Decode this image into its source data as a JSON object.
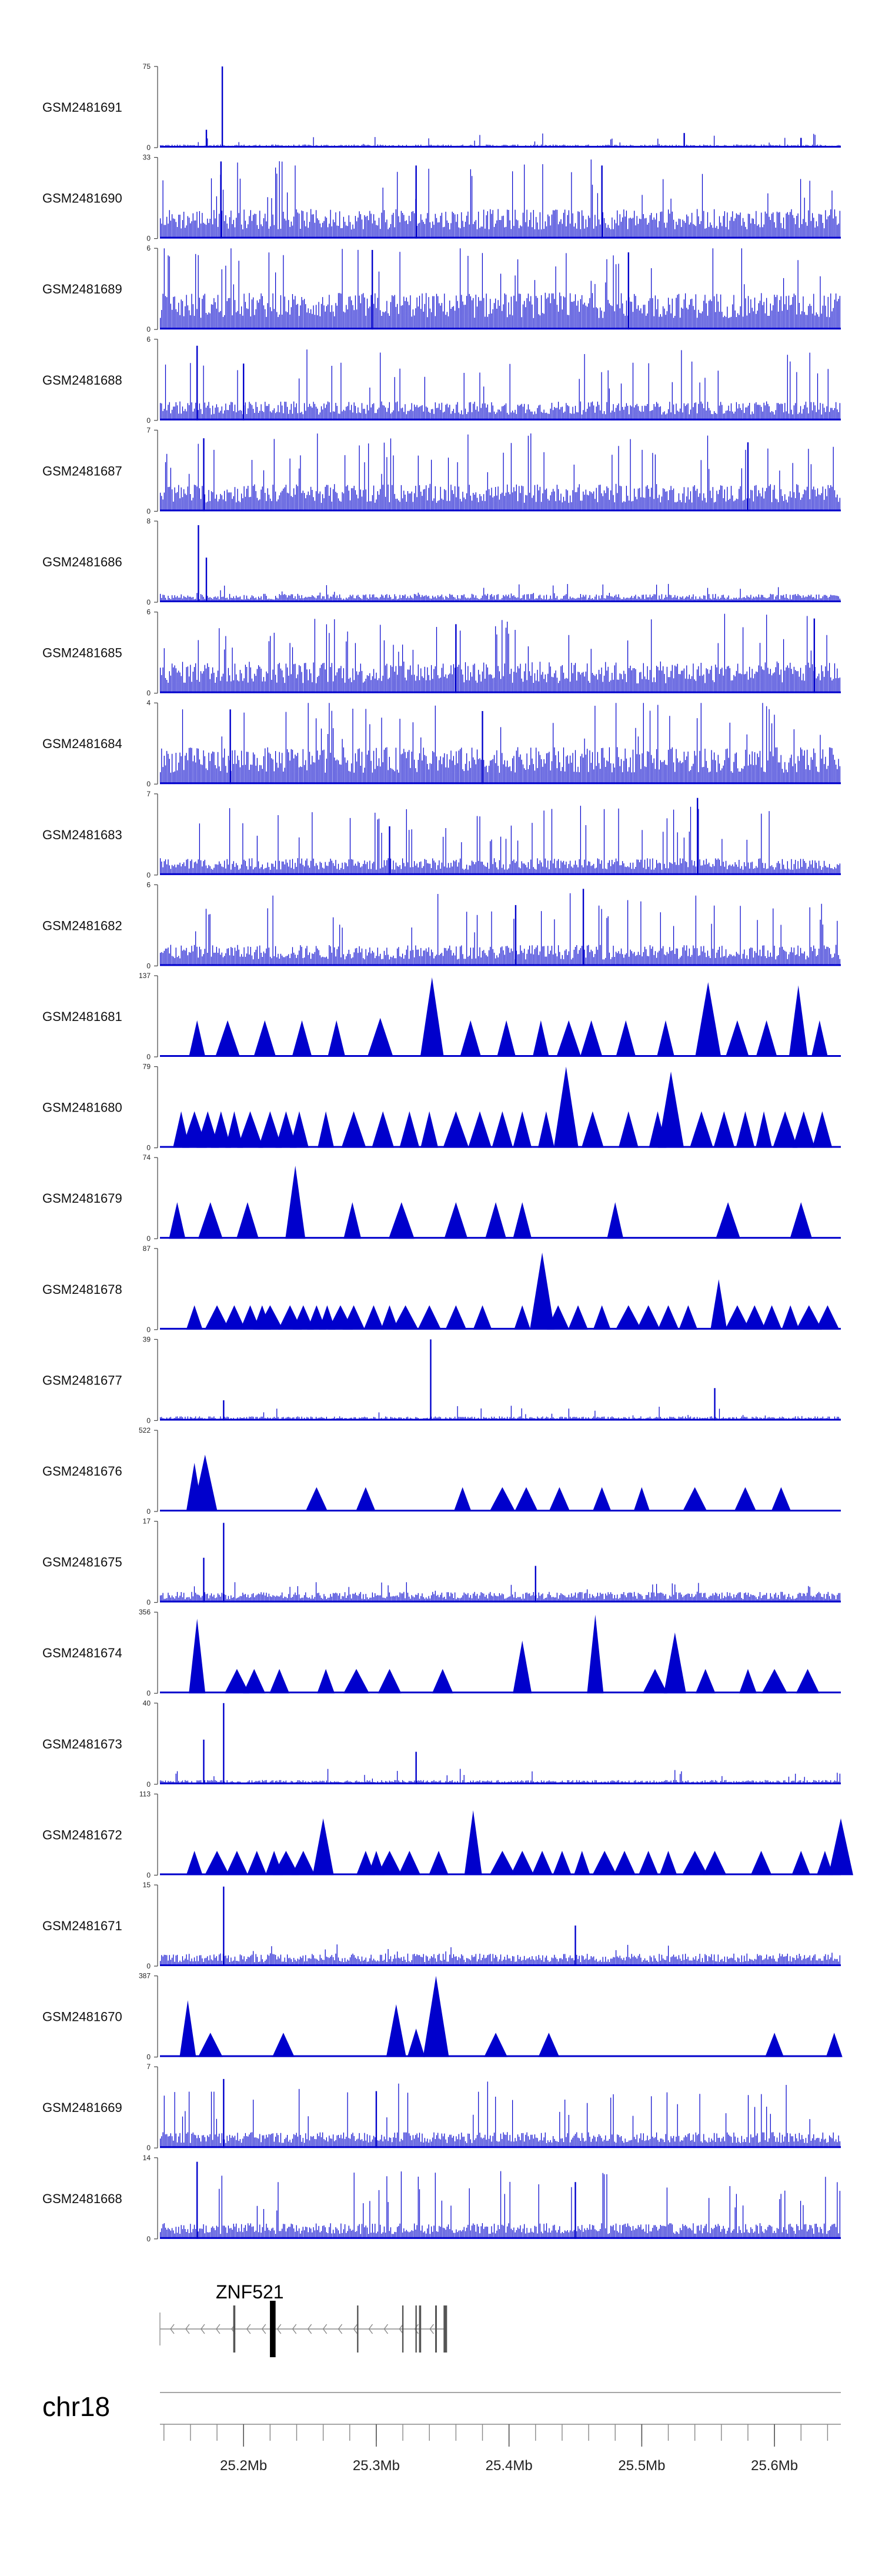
{
  "chart_data": {
    "type": "area",
    "title": "",
    "chromosome": "chr18",
    "x_range_mb": [
      25.137,
      25.65
    ],
    "track_color": "#0000cc",
    "tracks": [
      {
        "name": "GSM2481691",
        "ymax": 75,
        "style": "spiky",
        "base": 0.03,
        "spikes": [
          [
            25.184,
            1.0
          ],
          [
            25.172,
            0.22
          ],
          [
            25.532,
            0.18
          ],
          [
            25.62,
            0.12
          ]
        ]
      },
      {
        "name": "GSM2481690",
        "ymax": 33,
        "style": "dense",
        "base": 0.28,
        "spikes": [
          [
            25.183,
            0.95
          ],
          [
            25.33,
            0.9
          ],
          [
            25.47,
            0.9
          ]
        ]
      },
      {
        "name": "GSM2481689",
        "ymax": 6,
        "style": "dense",
        "base": 0.35,
        "spikes": [
          [
            25.297,
            0.98
          ],
          [
            25.49,
            0.95
          ]
        ]
      },
      {
        "name": "GSM2481688",
        "ymax": 6,
        "style": "dense",
        "base": 0.18,
        "spikes": [
          [
            25.165,
            0.92
          ],
          [
            25.2,
            0.7
          ]
        ]
      },
      {
        "name": "GSM2481687",
        "ymax": 7,
        "style": "dense",
        "base": 0.26,
        "spikes": [
          [
            25.17,
            0.9
          ],
          [
            25.58,
            0.85
          ]
        ]
      },
      {
        "name": "GSM2481686",
        "ymax": 8,
        "style": "spiky",
        "base": 0.08,
        "spikes": [
          [
            25.166,
            0.95
          ],
          [
            25.172,
            0.55
          ]
        ]
      },
      {
        "name": "GSM2481685",
        "ymax": 6,
        "style": "dense",
        "base": 0.3,
        "spikes": [
          [
            25.63,
            0.92
          ],
          [
            25.36,
            0.85
          ]
        ]
      },
      {
        "name": "GSM2481684",
        "ymax": 4,
        "style": "dense",
        "base": 0.35,
        "spikes": [
          [
            25.19,
            0.92
          ],
          [
            25.38,
            0.9
          ]
        ]
      },
      {
        "name": "GSM2481683",
        "ymax": 7,
        "style": "dense",
        "base": 0.16,
        "spikes": [
          [
            25.542,
            0.95
          ],
          [
            25.31,
            0.6
          ]
        ]
      },
      {
        "name": "GSM2481682",
        "ymax": 6,
        "style": "dense",
        "base": 0.2,
        "spikes": [
          [
            25.456,
            0.95
          ],
          [
            25.405,
            0.75
          ]
        ]
      },
      {
        "name": "GSM2481681",
        "ymax": 137,
        "style": "peaks",
        "peaks": [
          [
            25.165,
            0.45
          ],
          [
            25.188,
            0.45
          ],
          [
            25.216,
            0.45
          ],
          [
            25.244,
            0.45
          ],
          [
            25.27,
            0.45
          ],
          [
            25.303,
            0.48
          ],
          [
            25.342,
            0.98
          ],
          [
            25.371,
            0.45
          ],
          [
            25.398,
            0.45
          ],
          [
            25.424,
            0.45
          ],
          [
            25.445,
            0.45
          ],
          [
            25.462,
            0.45
          ],
          [
            25.488,
            0.45
          ],
          [
            25.518,
            0.45
          ],
          [
            25.55,
            0.92
          ],
          [
            25.572,
            0.45
          ],
          [
            25.594,
            0.45
          ],
          [
            25.618,
            0.88
          ],
          [
            25.634,
            0.45
          ]
        ]
      },
      {
        "name": "GSM2481680",
        "ymax": 79,
        "style": "peaks",
        "peaks": [
          [
            25.153,
            0.45
          ],
          [
            25.163,
            0.45
          ],
          [
            25.173,
            0.45
          ],
          [
            25.183,
            0.45
          ],
          [
            25.193,
            0.45
          ],
          [
            25.205,
            0.45
          ],
          [
            25.22,
            0.45
          ],
          [
            25.232,
            0.45
          ],
          [
            25.242,
            0.45
          ],
          [
            25.262,
            0.45
          ],
          [
            25.283,
            0.45
          ],
          [
            25.305,
            0.45
          ],
          [
            25.325,
            0.45
          ],
          [
            25.34,
            0.45
          ],
          [
            25.36,
            0.45
          ],
          [
            25.378,
            0.45
          ],
          [
            25.395,
            0.45
          ],
          [
            25.41,
            0.45
          ],
          [
            25.428,
            0.45
          ],
          [
            25.443,
            1.0
          ],
          [
            25.463,
            0.45
          ],
          [
            25.49,
            0.45
          ],
          [
            25.512,
            0.45
          ],
          [
            25.522,
            0.94
          ],
          [
            25.545,
            0.45
          ],
          [
            25.562,
            0.45
          ],
          [
            25.578,
            0.45
          ],
          [
            25.592,
            0.45
          ],
          [
            25.608,
            0.45
          ],
          [
            25.622,
            0.45
          ],
          [
            25.636,
            0.45
          ]
        ]
      },
      {
        "name": "GSM2481679",
        "ymax": 74,
        "style": "peaks",
        "peaks": [
          [
            25.15,
            0.45
          ],
          [
            25.175,
            0.45
          ],
          [
            25.203,
            0.45
          ],
          [
            25.239,
            0.9
          ],
          [
            25.282,
            0.45
          ],
          [
            25.319,
            0.45
          ],
          [
            25.36,
            0.45
          ],
          [
            25.39,
            0.45
          ],
          [
            25.41,
            0.45
          ],
          [
            25.48,
            0.45
          ],
          [
            25.565,
            0.45
          ],
          [
            25.62,
            0.45
          ]
        ]
      },
      {
        "name": "GSM2481678",
        "ymax": 87,
        "style": "peaks",
        "peaks": [
          [
            25.163,
            0.3
          ],
          [
            25.18,
            0.3
          ],
          [
            25.193,
            0.3
          ],
          [
            25.205,
            0.3
          ],
          [
            25.214,
            0.3
          ],
          [
            25.22,
            0.3
          ],
          [
            25.235,
            0.3
          ],
          [
            25.245,
            0.3
          ],
          [
            25.255,
            0.3
          ],
          [
            25.263,
            0.3
          ],
          [
            25.273,
            0.3
          ],
          [
            25.283,
            0.3
          ],
          [
            25.298,
            0.3
          ],
          [
            25.31,
            0.3
          ],
          [
            25.322,
            0.3
          ],
          [
            25.34,
            0.3
          ],
          [
            25.36,
            0.3
          ],
          [
            25.38,
            0.3
          ],
          [
            25.41,
            0.3
          ],
          [
            25.425,
            0.95
          ],
          [
            25.437,
            0.3
          ],
          [
            25.452,
            0.3
          ],
          [
            25.47,
            0.3
          ],
          [
            25.49,
            0.3
          ],
          [
            25.505,
            0.3
          ],
          [
            25.52,
            0.3
          ],
          [
            25.535,
            0.3
          ],
          [
            25.558,
            0.62
          ],
          [
            25.572,
            0.3
          ],
          [
            25.585,
            0.3
          ],
          [
            25.598,
            0.3
          ],
          [
            25.612,
            0.3
          ],
          [
            25.626,
            0.3
          ],
          [
            25.64,
            0.3
          ]
        ]
      },
      {
        "name": "GSM2481677",
        "ymax": 39,
        "style": "spiky",
        "base": 0.04,
        "spikes": [
          [
            25.341,
            1.0
          ],
          [
            25.555,
            0.4
          ],
          [
            25.185,
            0.25
          ]
        ]
      },
      {
        "name": "GSM2481676",
        "ymax": 522,
        "style": "peaks",
        "peaks": [
          [
            25.163,
            0.6
          ],
          [
            25.171,
            0.7
          ],
          [
            25.255,
            0.3
          ],
          [
            25.292,
            0.3
          ],
          [
            25.365,
            0.3
          ],
          [
            25.395,
            0.3
          ],
          [
            25.413,
            0.3
          ],
          [
            25.438,
            0.3
          ],
          [
            25.47,
            0.3
          ],
          [
            25.5,
            0.3
          ],
          [
            25.54,
            0.3
          ],
          [
            25.578,
            0.3
          ],
          [
            25.605,
            0.3
          ]
        ]
      },
      {
        "name": "GSM2481675",
        "ymax": 17,
        "style": "spiky",
        "base": 0.1,
        "spikes": [
          [
            25.185,
            0.98
          ],
          [
            25.17,
            0.55
          ],
          [
            25.42,
            0.45
          ]
        ]
      },
      {
        "name": "GSM2481674",
        "ymax": 356,
        "style": "peaks",
        "peaks": [
          [
            25.165,
            0.92
          ],
          [
            25.195,
            0.3
          ],
          [
            25.208,
            0.3
          ],
          [
            25.227,
            0.3
          ],
          [
            25.262,
            0.3
          ],
          [
            25.285,
            0.3
          ],
          [
            25.31,
            0.3
          ],
          [
            25.35,
            0.3
          ],
          [
            25.41,
            0.65
          ],
          [
            25.465,
            0.97
          ],
          [
            25.51,
            0.3
          ],
          [
            25.525,
            0.75
          ],
          [
            25.548,
            0.3
          ],
          [
            25.58,
            0.3
          ],
          [
            25.6,
            0.3
          ],
          [
            25.625,
            0.3
          ]
        ]
      },
      {
        "name": "GSM2481673",
        "ymax": 40,
        "style": "spiky",
        "base": 0.04,
        "spikes": [
          [
            25.185,
            1.0
          ],
          [
            25.17,
            0.55
          ],
          [
            25.33,
            0.4
          ]
        ]
      },
      {
        "name": "GSM2481672",
        "ymax": 113,
        "style": "peaks",
        "peaks": [
          [
            25.163,
            0.3
          ],
          [
            25.18,
            0.3
          ],
          [
            25.195,
            0.3
          ],
          [
            25.21,
            0.3
          ],
          [
            25.223,
            0.3
          ],
          [
            25.232,
            0.3
          ],
          [
            25.245,
            0.3
          ],
          [
            25.26,
            0.7
          ],
          [
            25.292,
            0.3
          ],
          [
            25.3,
            0.3
          ],
          [
            25.31,
            0.3
          ],
          [
            25.325,
            0.3
          ],
          [
            25.347,
            0.3
          ],
          [
            25.373,
            0.8
          ],
          [
            25.395,
            0.3
          ],
          [
            25.41,
            0.3
          ],
          [
            25.425,
            0.3
          ],
          [
            25.44,
            0.3
          ],
          [
            25.455,
            0.3
          ],
          [
            25.472,
            0.3
          ],
          [
            25.487,
            0.3
          ],
          [
            25.505,
            0.3
          ],
          [
            25.52,
            0.3
          ],
          [
            25.54,
            0.3
          ],
          [
            25.555,
            0.3
          ],
          [
            25.59,
            0.3
          ],
          [
            25.62,
            0.3
          ],
          [
            25.638,
            0.3
          ],
          [
            25.65,
            0.7
          ]
        ]
      },
      {
        "name": "GSM2481671",
        "ymax": 15,
        "style": "spiky",
        "base": 0.12,
        "spikes": [
          [
            25.185,
            0.98
          ],
          [
            25.45,
            0.5
          ]
        ]
      },
      {
        "name": "GSM2481670",
        "ymax": 387,
        "style": "peaks",
        "peaks": [
          [
            25.158,
            0.7
          ],
          [
            25.175,
            0.3
          ],
          [
            25.23,
            0.3
          ],
          [
            25.315,
            0.65
          ],
          [
            25.33,
            0.35
          ],
          [
            25.345,
            1.0
          ],
          [
            25.39,
            0.3
          ],
          [
            25.43,
            0.3
          ],
          [
            25.6,
            0.3
          ],
          [
            25.645,
            0.3
          ]
        ]
      },
      {
        "name": "GSM2481669",
        "ymax": 7,
        "style": "dense",
        "base": 0.15,
        "spikes": [
          [
            25.185,
            0.85
          ],
          [
            25.3,
            0.7
          ]
        ]
      },
      {
        "name": "GSM2481668",
        "ymax": 14,
        "style": "dense",
        "base": 0.15,
        "spikes": [
          [
            25.165,
            0.95
          ],
          [
            25.45,
            0.7
          ]
        ]
      }
    ],
    "gene": {
      "name": "ZNF521",
      "strand": "-",
      "start_mb": 25.137,
      "end_mb": 25.352,
      "exons_mb": [
        [
          25.193,
          0.6
        ],
        [
          25.222,
          1.6
        ],
        [
          25.286,
          0.4
        ],
        [
          25.32,
          0.4
        ],
        [
          25.33,
          0.4
        ],
        [
          25.333,
          0.6
        ],
        [
          25.345,
          0.5
        ],
        [
          25.352,
          1.0
        ]
      ]
    },
    "axis": {
      "tick_labels": [
        "25.2Mb",
        "25.3Mb",
        "25.4Mb",
        "25.5Mb",
        "25.6Mb"
      ],
      "tick_values_mb": [
        25.2,
        25.3,
        25.4,
        25.5,
        25.6
      ]
    }
  }
}
